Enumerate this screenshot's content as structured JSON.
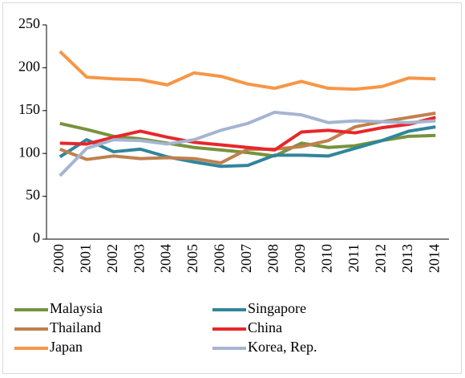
{
  "chart_data": {
    "type": "line",
    "categories": [
      "2000",
      "2001",
      "2002",
      "2003",
      "2004",
      "2005",
      "2006",
      "2007",
      "2008",
      "2009",
      "2010",
      "2011",
      "2012",
      "2013",
      "2014"
    ],
    "series": [
      {
        "name": "Malaysia",
        "color": "#77933c",
        "values": [
          135,
          128,
          120,
          117,
          112,
          107,
          104,
          101,
          97,
          112,
          107,
          109,
          115,
          120,
          121
        ]
      },
      {
        "name": "Singapore",
        "color": "#31859c",
        "values": [
          96,
          116,
          102,
          105,
          96,
          90,
          85,
          86,
          98,
          98,
          97,
          106,
          115,
          126,
          131
        ]
      },
      {
        "name": "Thailand",
        "color": "#c0804d",
        "values": [
          105,
          93,
          97,
          94,
          95,
          94,
          89,
          105,
          105,
          108,
          115,
          131,
          137,
          142,
          147
        ]
      },
      {
        "name": "China",
        "color": "#e8262b",
        "values": [
          112,
          111,
          119,
          126,
          119,
          113,
          110,
          107,
          104,
          125,
          127,
          124,
          130,
          134,
          142
        ]
      },
      {
        "name": "Japan",
        "color": "#f79646",
        "values": [
          219,
          189,
          187,
          186,
          180,
          194,
          190,
          181,
          176,
          184,
          176,
          175,
          178,
          188,
          187
        ]
      },
      {
        "name": "Korea, Rep.",
        "color": "#a5b4d0",
        "values": [
          74,
          106,
          116,
          115,
          111,
          116,
          127,
          135,
          148,
          145,
          136,
          138,
          137,
          136,
          138
        ]
      }
    ],
    "ylim": [
      0,
      250
    ],
    "yticks": [
      0,
      50,
      100,
      150,
      200,
      250
    ],
    "grid": false
  }
}
